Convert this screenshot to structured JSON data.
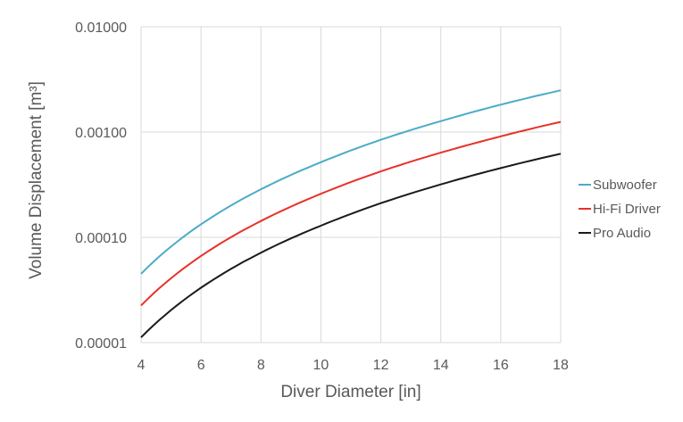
{
  "chart_data": {
    "type": "line",
    "title": "",
    "xlabel": "Diver Diameter  [in]",
    "ylabel": "Volume Displacement  [m³]",
    "xlim": [
      4,
      18
    ],
    "ylim": [
      1e-05,
      0.01
    ],
    "yscale": "log",
    "grid": true,
    "legend_position": "right",
    "x_ticks": [
      "4",
      "6",
      "8",
      "10",
      "12",
      "14",
      "16",
      "18"
    ],
    "y_ticks": [
      "0.00001",
      "0.00010",
      "0.00100",
      "0.01000"
    ],
    "x": [
      4,
      6,
      8,
      10,
      12,
      14,
      16,
      18
    ],
    "series": [
      {
        "name": "Subwoofer",
        "color": "#4bacc6",
        "values": [
          4.5e-05,
          0.000133,
          0.000286,
          0.000517,
          0.000845,
          0.00127,
          0.00182,
          0.00249
        ]
      },
      {
        "name": "Hi-Fi Driver",
        "color": "#e8312a",
        "values": [
          2.25e-05,
          6.65e-05,
          0.000143,
          0.000259,
          0.000423,
          0.000637,
          0.00091,
          0.00125
        ]
      },
      {
        "name": "Pro Audio",
        "color": "#1a1a1a",
        "values": [
          1.12e-05,
          3.32e-05,
          7.15e-05,
          0.000129,
          0.000211,
          0.000318,
          0.000455,
          0.000622
        ]
      }
    ]
  }
}
